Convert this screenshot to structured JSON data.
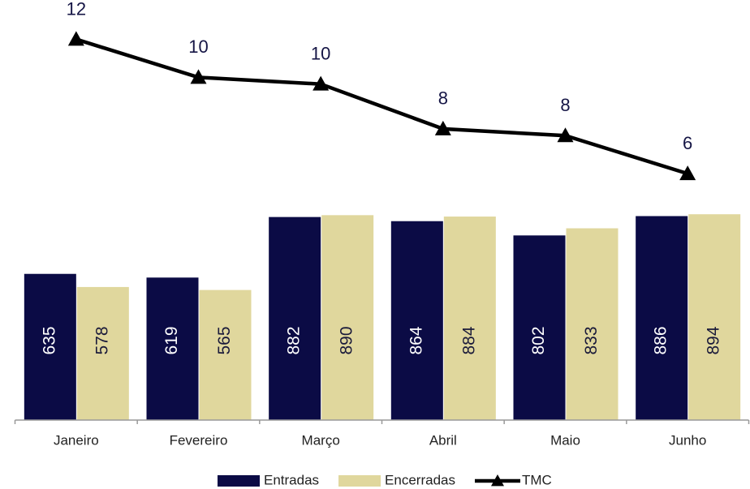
{
  "chart_data": {
    "type": "bar",
    "categories": [
      "Janeiro",
      "Fevereiro",
      "Março",
      "Abril",
      "Maio",
      "Junho"
    ],
    "series": [
      {
        "name": "Entradas",
        "color": "#0b0b45",
        "values": [
          635,
          619,
          882,
          864,
          802,
          886
        ]
      },
      {
        "name": "Encerradas",
        "color": "#e0d79d",
        "values": [
          578,
          565,
          890,
          884,
          833,
          894
        ]
      },
      {
        "name": "TMC",
        "type": "line",
        "axis": "y2",
        "color": "#000000",
        "values": [
          12,
          10.3,
          10,
          8,
          7.7,
          6
        ],
        "value_labels": [
          "12",
          "10",
          "10",
          "8",
          "8",
          "6"
        ]
      }
    ],
    "ylim": [
      0,
      1800
    ],
    "y2lim": [
      -5,
      13.5
    ]
  }
}
